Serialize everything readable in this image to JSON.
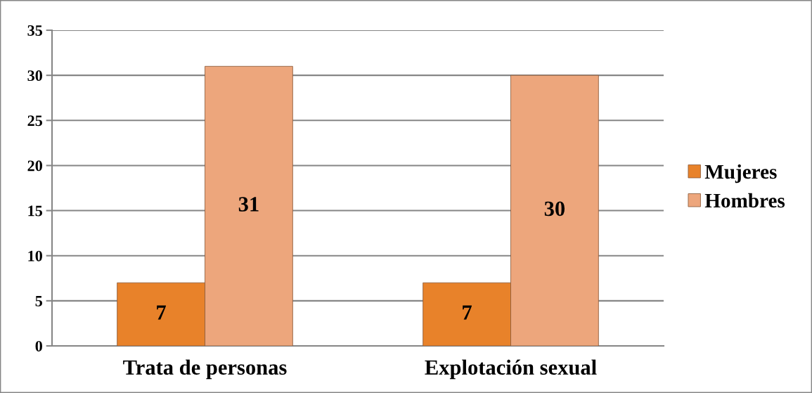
{
  "chart_data": {
    "type": "bar",
    "categories": [
      "Trata de personas",
      "Explotación sexual"
    ],
    "series": [
      {
        "name": "Mujeres",
        "color": "#e8822a",
        "values": [
          7,
          7
        ]
      },
      {
        "name": "Hombres",
        "color": "#eda67c",
        "values": [
          31,
          30
        ]
      }
    ],
    "ylim": [
      0,
      35
    ],
    "yticks": [
      0,
      5,
      10,
      15,
      20,
      25,
      30,
      35
    ],
    "grid": "y",
    "legend": "right",
    "data_labels": true
  }
}
